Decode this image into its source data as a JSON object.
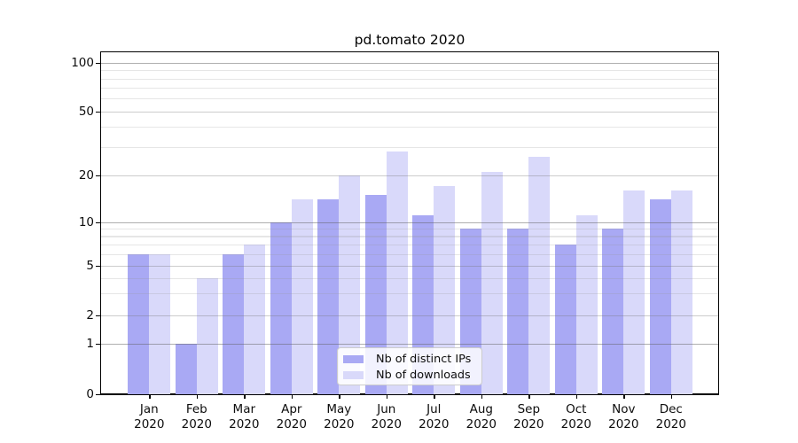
{
  "title": "pd.tomato 2020",
  "chart_data": {
    "type": "bar",
    "title": "pd.tomato 2020",
    "categories": [
      "Jan",
      "Feb",
      "Mar",
      "Apr",
      "May",
      "Jun",
      "Jul",
      "Aug",
      "Sep",
      "Oct",
      "Nov",
      "Dec"
    ],
    "x_tick_second_line": "2020",
    "series": [
      {
        "name": "Nb of distinct IPs",
        "color": "#a9a9f4",
        "values": [
          6,
          1,
          6,
          10,
          14,
          15,
          11,
          9,
          9,
          7,
          9,
          14
        ]
      },
      {
        "name": "Nb of downloads",
        "color": "#d9d9fa",
        "values": [
          6,
          4,
          7,
          14,
          20,
          28,
          17,
          21,
          26,
          11,
          16,
          16
        ]
      }
    ],
    "y_axis": {
      "tick_labels": [
        0,
        1,
        2,
        5,
        10,
        20,
        50,
        100
      ],
      "major_gridlines": [
        1,
        10,
        100
      ],
      "mid_gridlines": [
        2,
        5,
        20,
        50
      ],
      "minor_gridlines": [
        3,
        4,
        6,
        7,
        8,
        9,
        30,
        40,
        60,
        70,
        80,
        90
      ],
      "ylim": [
        0,
        100
      ],
      "scale": "log-like with zero baseline"
    },
    "legend": {
      "position": "lower center"
    },
    "grid": true
  }
}
